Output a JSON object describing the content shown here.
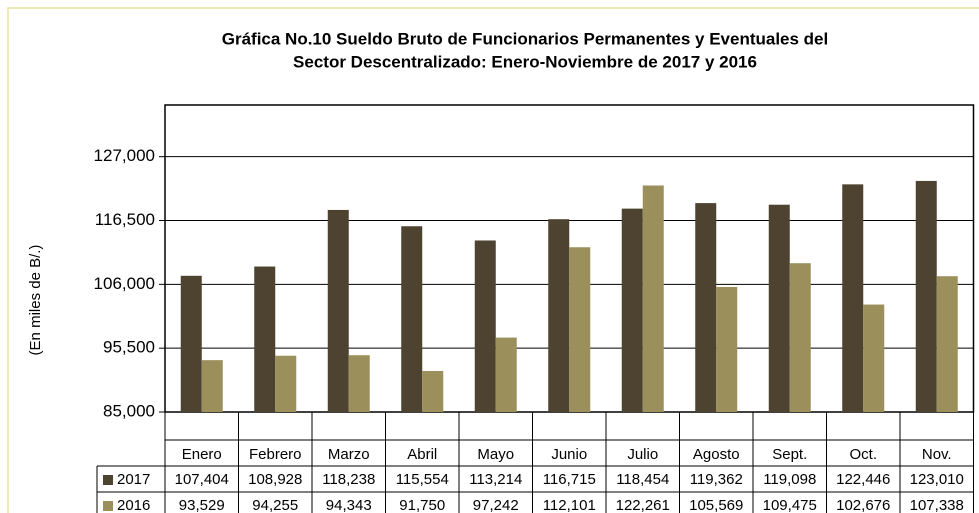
{
  "chart_data": {
    "type": "bar",
    "title": [
      "Gráfica No.10 Sueldo Bruto de Funcionarios Permanentes y Eventuales del",
      "Sector Descentralizado: Enero-Noviembre de 2017 y 2016"
    ],
    "y_label": "(En miles de B/.)",
    "categories": [
      "Enero",
      "Febrero",
      "Marzo",
      "Abril",
      "Mayo",
      "Junio",
      "Julio",
      "Agosto",
      "Sept.",
      "Oct.",
      "Nov."
    ],
    "series": [
      {
        "name": "2017",
        "color": "#4d4330",
        "values": [
          107404,
          108928,
          118238,
          115554,
          113214,
          116715,
          118454,
          119362,
          119098,
          122446,
          123010
        ],
        "value_labels": [
          "107,404",
          "108,928",
          "118,238",
          "115,554",
          "113,214",
          "116,715",
          "118,454",
          "119,362",
          "119,098",
          "122,446",
          "123,010"
        ]
      },
      {
        "name": "2016",
        "color": "#9b8f5c",
        "values": [
          93529,
          94255,
          94343,
          91750,
          97242,
          112101,
          122261,
          105569,
          109475,
          102676,
          107338
        ],
        "value_labels": [
          "93,529",
          "94,255",
          "94,343",
          "91,750",
          "97,242",
          "112,101",
          "122,261",
          "105,569",
          "109,475",
          "102,676",
          "107,338"
        ]
      }
    ],
    "ylim": [
      85000,
      135500
    ],
    "yticks": [
      {
        "value": 85000,
        "label": "85,000"
      },
      {
        "value": 95500,
        "label": "95,500"
      },
      {
        "value": 106000,
        "label": "106,000"
      },
      {
        "value": 116500,
        "label": "116,500"
      },
      {
        "value": 127000,
        "label": "127,000"
      }
    ],
    "grid": true
  }
}
